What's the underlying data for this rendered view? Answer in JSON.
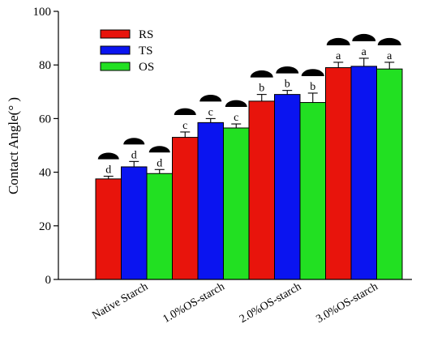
{
  "chart_data": {
    "type": "bar",
    "categories": [
      "Native Starch",
      "1.0%OS-starch",
      "2.0%OS-starch",
      "3.0%OS-starch"
    ],
    "series": [
      {
        "name": "RS",
        "color": "#e8140c",
        "values": [
          37.5,
          53.0,
          66.5,
          79.0
        ],
        "errors": [
          1.0,
          2.0,
          2.5,
          2.0
        ],
        "letters": [
          "d",
          "c",
          "b",
          "a"
        ]
      },
      {
        "name": "TS",
        "color": "#0a14f0",
        "values": [
          42.0,
          58.5,
          69.0,
          79.5
        ],
        "errors": [
          2.0,
          1.5,
          1.5,
          3.0
        ],
        "letters": [
          "d",
          "c",
          "b",
          "a"
        ]
      },
      {
        "name": "OS",
        "color": "#22e022",
        "values": [
          39.5,
          56.5,
          66.0,
          78.5
        ],
        "errors": [
          1.5,
          1.5,
          3.5,
          2.5
        ],
        "letters": [
          "d",
          "c",
          "b",
          "a"
        ]
      }
    ],
    "ylabel": "Contact Angle(° )",
    "xlabel": "",
    "ylim": [
      0,
      100
    ],
    "yticks": [
      "0",
      "20",
      "40",
      "60",
      "80",
      "100"
    ],
    "legend": {
      "placement": "top-left"
    },
    "grid": false
  }
}
